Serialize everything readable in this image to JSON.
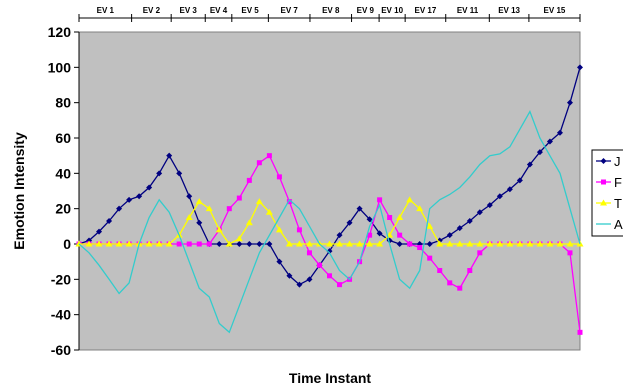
{
  "chart_data": {
    "type": "line",
    "title": "",
    "xlabel": "Time Instant",
    "ylabel": "Emotion Intensity",
    "ylim": [
      -60,
      120
    ],
    "yticks": [
      -60,
      -40,
      -20,
      0,
      20,
      40,
      60,
      80,
      100,
      120
    ],
    "xlim": [
      0,
      100
    ],
    "grid": false,
    "plot_background": "#C0C0C0",
    "legend_position": "right",
    "events": [
      "EV 1",
      "EV 2",
      "EV 3",
      "EV 4",
      "EV 5",
      "EV 7",
      "EV 8",
      "EV 9",
      "EV 10",
      "EV 17",
      "EV 11",
      "EV 13",
      "EV 15"
    ],
    "event_boundaries": [
      0,
      10.5,
      18.4,
      25.2,
      30.5,
      37.8,
      46.1,
      54.4,
      59.9,
      65.1,
      73.2,
      81.9,
      89.8,
      100
    ],
    "series": [
      {
        "name": "J",
        "color": "#000080",
        "marker": "diamond",
        "x": [
          0,
          2,
          4,
          6,
          8,
          10,
          12,
          14,
          16,
          18,
          20,
          22,
          24,
          26,
          28,
          30,
          32,
          34,
          36,
          38,
          40,
          42,
          44,
          46,
          48,
          50,
          52,
          54,
          56,
          58,
          60,
          62,
          64,
          66,
          68,
          70,
          72,
          74,
          76,
          78,
          80,
          82,
          84,
          86,
          88,
          90,
          92,
          94,
          96,
          98,
          100
        ],
        "values": [
          0,
          2,
          7,
          13,
          20,
          25,
          27,
          32,
          40,
          50,
          40,
          27,
          12,
          0,
          0,
          0,
          0,
          0,
          0,
          0,
          -10,
          -18,
          -23,
          -20,
          -12,
          -4,
          5,
          12,
          20,
          14,
          6,
          2,
          0,
          0,
          0,
          0,
          2,
          5,
          9,
          13,
          18,
          22,
          27,
          31,
          36,
          45,
          52,
          58,
          63,
          80,
          100
        ]
      },
      {
        "name": "F",
        "color": "#FF00FF",
        "marker": "square",
        "x": [
          0,
          2,
          4,
          6,
          8,
          10,
          12,
          14,
          16,
          18,
          20,
          22,
          24,
          26,
          28,
          30,
          32,
          34,
          36,
          38,
          40,
          42,
          44,
          46,
          48,
          50,
          52,
          54,
          56,
          58,
          60,
          62,
          64,
          66,
          68,
          70,
          72,
          74,
          76,
          78,
          80,
          82,
          84,
          86,
          88,
          90,
          92,
          94,
          96,
          98,
          100
        ],
        "values": [
          0,
          0,
          0,
          0,
          0,
          0,
          0,
          0,
          0,
          0,
          0,
          0,
          0,
          0,
          8,
          20,
          26,
          36,
          46,
          50,
          38,
          24,
          8,
          -5,
          -12,
          -18,
          -23,
          -20,
          -10,
          5,
          25,
          15,
          5,
          0,
          -2,
          -8,
          -15,
          -22,
          -25,
          -15,
          -5,
          0,
          0,
          0,
          0,
          0,
          0,
          0,
          0,
          -5,
          -50
        ]
      },
      {
        "name": "T",
        "color": "#FFFF00",
        "marker": "triangle",
        "x": [
          0,
          2,
          4,
          6,
          8,
          10,
          12,
          14,
          16,
          18,
          20,
          22,
          24,
          26,
          28,
          30,
          32,
          34,
          36,
          38,
          40,
          42,
          44,
          46,
          48,
          50,
          52,
          54,
          56,
          58,
          60,
          62,
          64,
          66,
          68,
          70,
          72,
          74,
          76,
          78,
          80,
          82,
          84,
          86,
          88,
          90,
          92,
          94,
          96,
          98,
          100
        ],
        "values": [
          0,
          0,
          0,
          0,
          0,
          0,
          0,
          0,
          0,
          0,
          5,
          15,
          24,
          20,
          8,
          0,
          3,
          12,
          24,
          18,
          8,
          0,
          0,
          0,
          0,
          0,
          0,
          0,
          0,
          0,
          0,
          5,
          15,
          25,
          20,
          10,
          0,
          0,
          0,
          0,
          0,
          0,
          0,
          0,
          0,
          0,
          0,
          0,
          0,
          0,
          0
        ]
      },
      {
        "name": "A",
        "color": "#33CCCC",
        "marker": "none",
        "x": [
          0,
          2,
          4,
          6,
          8,
          10,
          12,
          14,
          16,
          18,
          20,
          22,
          24,
          26,
          28,
          30,
          32,
          34,
          36,
          38,
          40,
          42,
          44,
          46,
          48,
          50,
          52,
          54,
          56,
          58,
          60,
          62,
          64,
          66,
          68,
          70,
          72,
          74,
          76,
          78,
          80,
          82,
          84,
          86,
          88,
          90,
          92,
          94,
          96,
          98,
          100
        ],
        "values": [
          0,
          -5,
          -12,
          -20,
          -28,
          -22,
          0,
          15,
          25,
          18,
          5,
          -10,
          -25,
          -30,
          -45,
          -50,
          -35,
          -20,
          -5,
          5,
          15,
          25,
          20,
          10,
          0,
          -5,
          -15,
          -20,
          -10,
          10,
          22,
          0,
          -20,
          -25,
          -15,
          20,
          25,
          28,
          32,
          38,
          45,
          50,
          51,
          55,
          65,
          75,
          60,
          50,
          40,
          20,
          0
        ]
      }
    ]
  }
}
